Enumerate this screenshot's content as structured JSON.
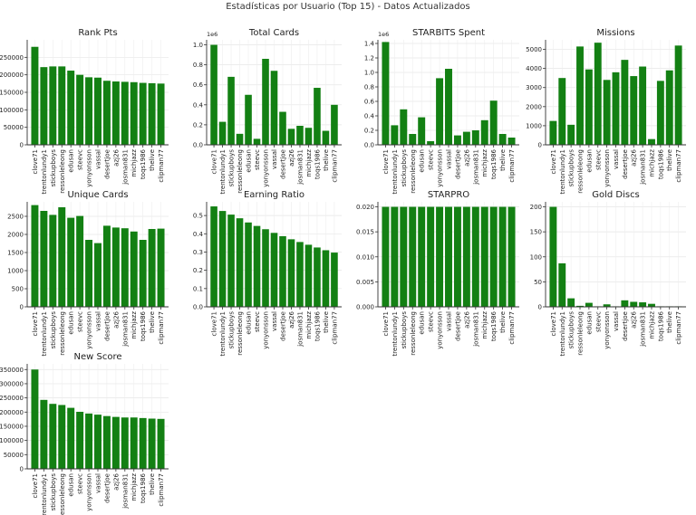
{
  "suptitle": "Estadísticas por Usuario (Top 15) - Datos Actualizados",
  "categories": [
    "clove71",
    "trentonlundy1",
    "stickupboys",
    "ressonleleong",
    "edusan",
    "steevc",
    "yonyonsson",
    "vassal",
    "desertjoe",
    "azj26",
    "josman831",
    "michjazz",
    "toqs1986",
    "thelive",
    "clipman77"
  ],
  "bar_color": "#138013",
  "chart_data": [
    {
      "type": "bar",
      "title": "Rank Pts",
      "ylim": [
        0,
        300000
      ],
      "yticks": [
        0,
        50000,
        100000,
        150000,
        200000,
        250000
      ],
      "ytick_labels": [
        "0",
        "50000",
        "100000",
        "150000",
        "200000",
        "250000"
      ],
      "multiplier": "",
      "values": [
        280000,
        222000,
        224000,
        224000,
        212000,
        200000,
        193000,
        192000,
        183000,
        181000,
        180000,
        179000,
        177000,
        176000,
        175000
      ]
    },
    {
      "type": "bar",
      "title": "Total Cards",
      "ylim": [
        0,
        1050000
      ],
      "yticks": [
        0,
        200000,
        400000,
        600000,
        800000,
        1000000
      ],
      "ytick_labels": [
        "0.0",
        "0.2",
        "0.4",
        "0.6",
        "0.8",
        "1.0"
      ],
      "multiplier": "1e6",
      "values": [
        1000000,
        230000,
        680000,
        110000,
        500000,
        60000,
        860000,
        740000,
        330000,
        160000,
        190000,
        170000,
        570000,
        140000,
        400000
      ]
    },
    {
      "type": "bar",
      "title": "STARBITS Spent",
      "ylim": [
        0,
        1450000
      ],
      "yticks": [
        0,
        200000,
        400000,
        600000,
        800000,
        1000000,
        1200000,
        1400000
      ],
      "ytick_labels": [
        "0.0",
        "0.2",
        "0.4",
        "0.6",
        "0.8",
        "1.0",
        "1.2",
        "1.4"
      ],
      "multiplier": "1e6",
      "values": [
        1420000,
        270000,
        490000,
        150000,
        380000,
        50000,
        920000,
        1050000,
        130000,
        180000,
        200000,
        340000,
        610000,
        150000,
        100000
      ]
    },
    {
      "type": "bar",
      "title": "Missions",
      "ylim": [
        0,
        5500
      ],
      "yticks": [
        0,
        1000,
        2000,
        3000,
        4000,
        5000
      ],
      "ytick_labels": [
        "0",
        "1000",
        "2000",
        "3000",
        "4000",
        "5000"
      ],
      "multiplier": "",
      "values": [
        1250,
        3500,
        1050,
        5150,
        3950,
        5350,
        3400,
        3800,
        4450,
        3600,
        4100,
        300,
        3350,
        3900,
        5200
      ]
    },
    {
      "type": "bar",
      "title": "Unique Cards",
      "ylim": [
        0,
        2900
      ],
      "yticks": [
        0,
        500,
        1000,
        1500,
        2000,
        2500
      ],
      "ytick_labels": [
        "0",
        "500",
        "1000",
        "1500",
        "2000",
        "2500"
      ],
      "multiplier": "",
      "values": [
        2810,
        2650,
        2540,
        2750,
        2460,
        2510,
        1850,
        1760,
        2240,
        2190,
        2170,
        2080,
        1850,
        2150,
        2160
      ]
    },
    {
      "type": "bar",
      "title": "Earning Ratio",
      "ylim": [
        0,
        0.575
      ],
      "yticks": [
        0,
        0.1,
        0.2,
        0.3,
        0.4,
        0.5
      ],
      "ytick_labels": [
        "0.0",
        "0.1",
        "0.2",
        "0.3",
        "0.4",
        "0.5"
      ],
      "multiplier": "",
      "values": [
        0.55,
        0.525,
        0.505,
        0.485,
        0.462,
        0.443,
        0.425,
        0.405,
        0.387,
        0.37,
        0.355,
        0.34,
        0.325,
        0.31,
        0.297
      ]
    },
    {
      "type": "bar",
      "title": "STARPRO",
      "ylim": [
        0,
        0.021
      ],
      "yticks": [
        0,
        0.005,
        0.01,
        0.015,
        0.02
      ],
      "ytick_labels": [
        "0.000",
        "0.005",
        "0.010",
        "0.015",
        "0.020"
      ],
      "multiplier": "",
      "values": [
        0.02,
        0.02,
        0.02,
        0.02,
        0.02,
        0.02,
        0.02,
        0.02,
        0.02,
        0.02,
        0.02,
        0.02,
        0.02,
        0.02,
        0.02
      ]
    },
    {
      "type": "bar",
      "title": "Gold Discs",
      "ylim": [
        0,
        210
      ],
      "yticks": [
        0,
        50,
        100,
        150,
        200
      ],
      "ytick_labels": [
        "0",
        "50",
        "100",
        "150",
        "200"
      ],
      "multiplier": "",
      "values": [
        200,
        87,
        17,
        2,
        8,
        1,
        5,
        1,
        13,
        10,
        9,
        6,
        1,
        1,
        1
      ]
    },
    {
      "type": "bar",
      "title": "New Score",
      "ylim": [
        0,
        370000
      ],
      "yticks": [
        0,
        50000,
        100000,
        150000,
        200000,
        250000,
        300000,
        350000
      ],
      "ytick_labels": [
        "0",
        "50000",
        "100000",
        "150000",
        "200000",
        "250000",
        "300000",
        "350000"
      ],
      "multiplier": "",
      "values": [
        350000,
        243000,
        229000,
        225000,
        215000,
        201000,
        195000,
        191000,
        186000,
        183000,
        181000,
        181000,
        179000,
        177000,
        176000
      ]
    }
  ]
}
